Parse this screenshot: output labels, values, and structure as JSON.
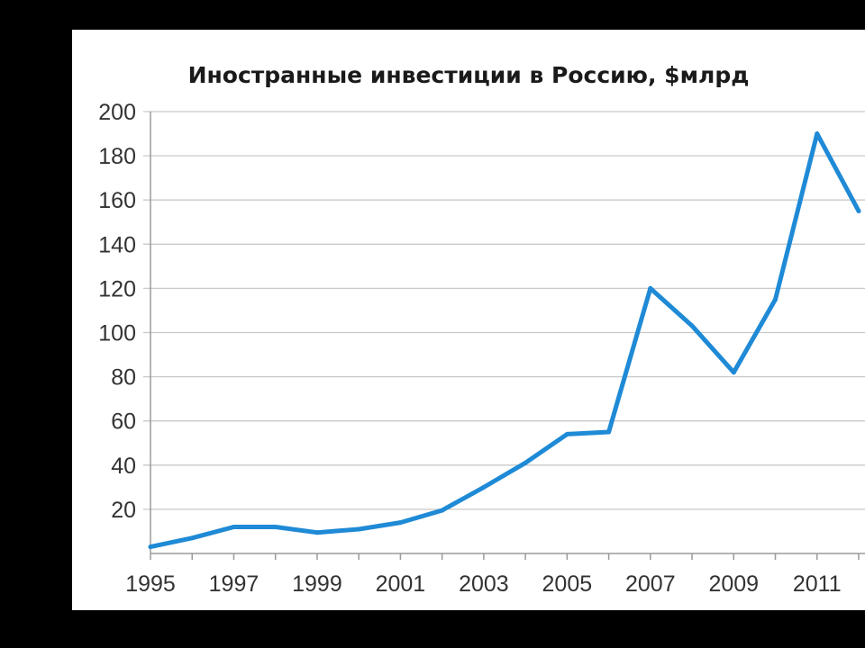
{
  "chart_data": {
    "type": "line",
    "title": "Иностранные инвестиции в Россию, $млрд",
    "xlabel": "",
    "ylabel": "",
    "x": [
      1995,
      1996,
      1997,
      1998,
      1999,
      2000,
      2001,
      2002,
      2003,
      2004,
      2005,
      2006,
      2007,
      2008,
      2009,
      2010,
      2011,
      2012
    ],
    "series": [
      {
        "name": "",
        "values": [
          3,
          7,
          12,
          12,
          9.5,
          11,
          14,
          19.5,
          30,
          41,
          54,
          55,
          120,
          103,
          82,
          115,
          190,
          155
        ],
        "color": "#1f8ad6"
      }
    ],
    "xlim": [
      1995,
      2012
    ],
    "ylim": [
      0,
      200
    ],
    "yticks": [
      20,
      40,
      60,
      80,
      100,
      120,
      140,
      160,
      180,
      200
    ],
    "xticks": [
      1995,
      1997,
      1999,
      2001,
      2003,
      2005,
      2007,
      2009,
      2011
    ],
    "xtick_labels": [
      "1995",
      "1997",
      "1999",
      "2001",
      "2003",
      "2005",
      "2007",
      "2009",
      "2011"
    ],
    "grid": true,
    "legend": "none"
  }
}
